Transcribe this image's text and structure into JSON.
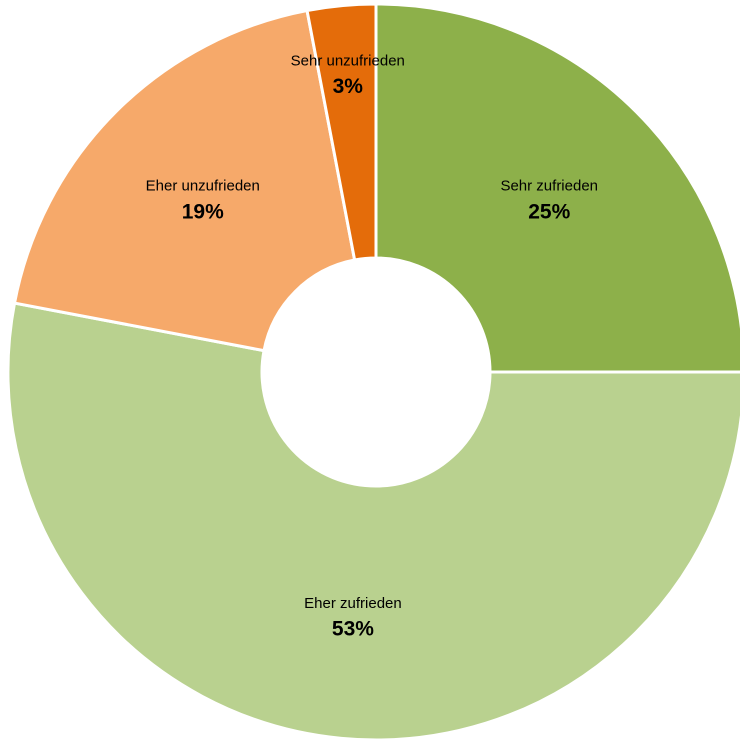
{
  "chart_data": {
    "type": "donut",
    "categories": [
      "Sehr zufrieden",
      "Eher zufrieden",
      "Eher unzufrieden",
      "Sehr unzufrieden"
    ],
    "values": [
      25,
      53,
      19,
      3
    ],
    "value_labels": [
      "25%",
      "53%",
      "19%",
      "3%"
    ],
    "colors": [
      "#8db04a",
      "#b9d18f",
      "#f6a96a",
      "#e46c0a"
    ]
  }
}
